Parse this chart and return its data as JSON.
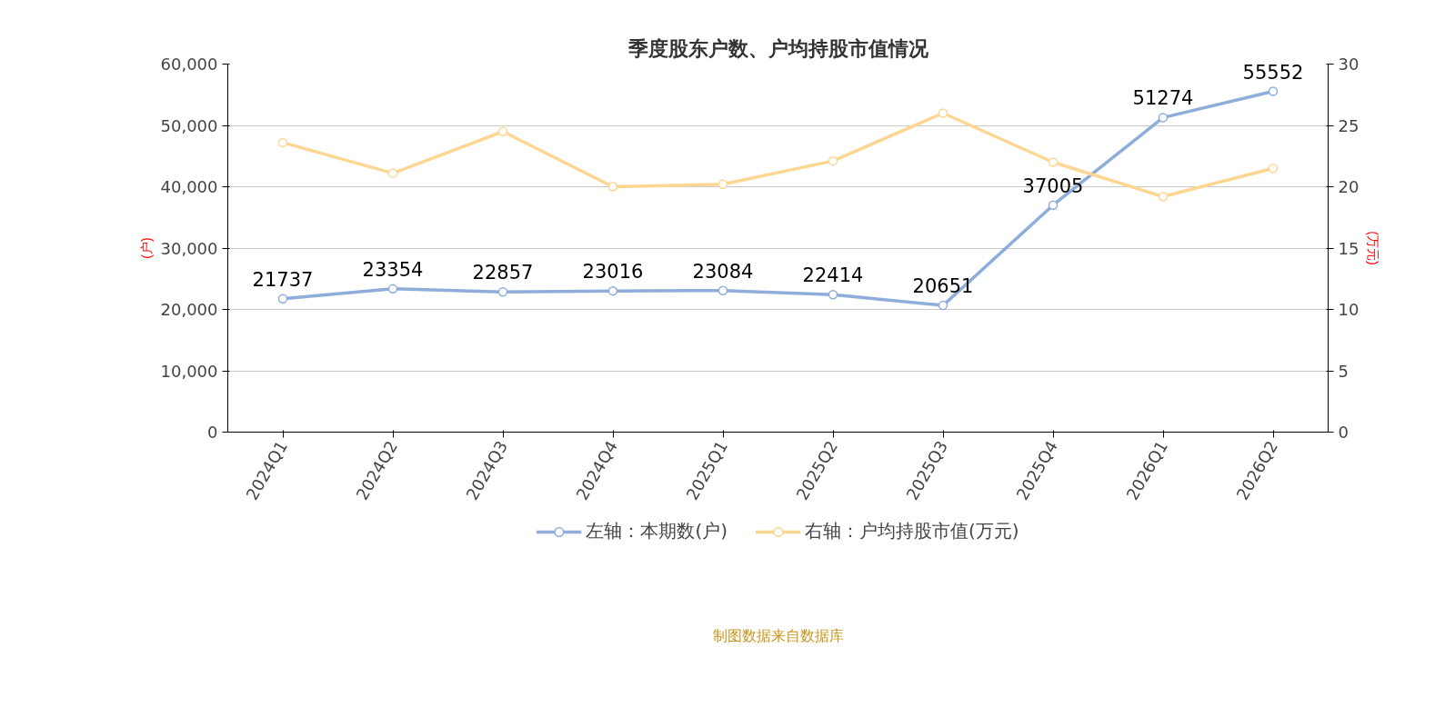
{
  "chart_data": {
    "type": "line",
    "title": "季度股东户数、户均持股市值情况",
    "categories": [
      "2024Q1",
      "2024Q2",
      "2024Q3",
      "2024Q4",
      "2025Q1",
      "2025Q2",
      "2025Q3",
      "2025Q4",
      "2026Q1",
      "2026Q2"
    ],
    "series": [
      {
        "name": "左轴：本期数(户)",
        "color": "#8eaddb",
        "values": [
          21737,
          23354,
          22857,
          23016,
          23084,
          22414,
          20651,
          37005,
          51274,
          55552
        ],
        "value_labels": [
          "21737",
          "23354",
          "22857",
          "23016",
          "23084",
          "22414",
          "20651",
          "37005",
          "51274",
          "55552"
        ]
      },
      {
        "name": "右轴：户均持股市值(万元)",
        "color": "#fdd692",
        "axis": "y2",
        "values": [
          23.6,
          21.1,
          24.5,
          20.0,
          20.2,
          22.1,
          26.0,
          22.0,
          19.2,
          21.5
        ]
      }
    ],
    "ylabel": "(户)",
    "y2label": "(万元)",
    "ylim": [
      0,
      60000
    ],
    "yticks": [
      {
        "value": 0,
        "label": "0"
      },
      {
        "value": 10000,
        "label": "10,000"
      },
      {
        "value": 20000,
        "label": "20,000"
      },
      {
        "value": 30000,
        "label": "30,000"
      },
      {
        "value": 40000,
        "label": "40,000"
      },
      {
        "value": 50000,
        "label": "50,000"
      },
      {
        "value": 60000,
        "label": "60,000"
      }
    ],
    "y2lim": [
      0,
      30
    ],
    "y2ticks": [
      0,
      5,
      10,
      15,
      20,
      25,
      30
    ],
    "grid": "y",
    "legend": "bottom",
    "marker": "circle",
    "line_style": "solid",
    "annotations": [
      "制图数据来自数据库"
    ]
  }
}
